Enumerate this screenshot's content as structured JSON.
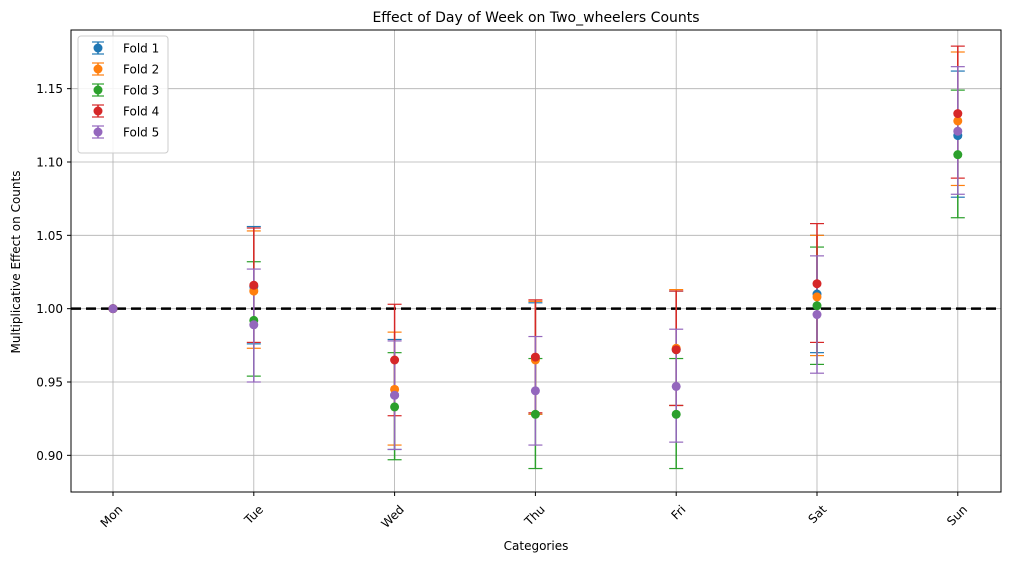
{
  "chart_data": {
    "type": "scatter",
    "title": "Effect of Day of Week on Two_wheelers Counts",
    "xlabel": "Categories",
    "ylabel": "Multiplicative Effect on Counts",
    "categories": [
      "Mon",
      "Tue",
      "Wed",
      "Thu",
      "Fri",
      "Sat",
      "Sun"
    ],
    "ylim": [
      0.875,
      1.19
    ],
    "yticks": [
      0.9,
      0.95,
      1.0,
      1.05,
      1.1,
      1.15
    ],
    "ytick_labels": [
      "0.90",
      "0.95",
      "1.00",
      "1.05",
      "1.10",
      "1.15"
    ],
    "reference_line": 1.0,
    "grid": true,
    "legend_position": "top-left",
    "series": [
      {
        "name": "Fold 1",
        "color": "#1f77b4",
        "values": [
          1.0,
          1.015,
          0.941,
          0.966,
          0.972,
          1.01,
          1.118
        ],
        "lower": [
          1.0,
          0.976,
          0.904,
          0.928,
          0.934,
          0.97,
          1.076
        ],
        "upper": [
          1.0,
          1.056,
          0.979,
          1.004,
          1.012,
          1.05,
          1.162
        ]
      },
      {
        "name": "Fold 2",
        "color": "#ff7f0e",
        "values": [
          1.0,
          1.012,
          0.945,
          0.965,
          0.973,
          1.008,
          1.128
        ],
        "lower": [
          1.0,
          0.973,
          0.907,
          0.928,
          0.934,
          0.968,
          1.084
        ],
        "upper": [
          1.0,
          1.053,
          0.984,
          1.005,
          1.013,
          1.05,
          1.175
        ]
      },
      {
        "name": "Fold 3",
        "color": "#2ca02c",
        "values": [
          1.0,
          0.992,
          0.933,
          0.928,
          0.928,
          1.002,
          1.105
        ],
        "lower": [
          1.0,
          0.954,
          0.897,
          0.891,
          0.891,
          0.962,
          1.062
        ],
        "upper": [
          1.0,
          1.032,
          0.97,
          0.966,
          0.966,
          1.042,
          1.149
        ]
      },
      {
        "name": "Fold 4",
        "color": "#d62728",
        "values": [
          1.0,
          1.016,
          0.965,
          0.967,
          0.972,
          1.017,
          1.133
        ],
        "lower": [
          1.0,
          0.977,
          0.927,
          0.929,
          0.934,
          0.977,
          1.089
        ],
        "upper": [
          1.0,
          1.055,
          1.003,
          1.006,
          1.012,
          1.058,
          1.179
        ]
      },
      {
        "name": "Fold 5",
        "color": "#9467bd",
        "values": [
          1.0,
          0.989,
          0.941,
          0.944,
          0.947,
          0.996,
          1.121
        ],
        "lower": [
          1.0,
          0.95,
          0.904,
          0.907,
          0.909,
          0.956,
          1.078
        ],
        "upper": [
          1.0,
          1.027,
          0.978,
          0.981,
          0.986,
          1.036,
          1.165
        ]
      }
    ]
  }
}
